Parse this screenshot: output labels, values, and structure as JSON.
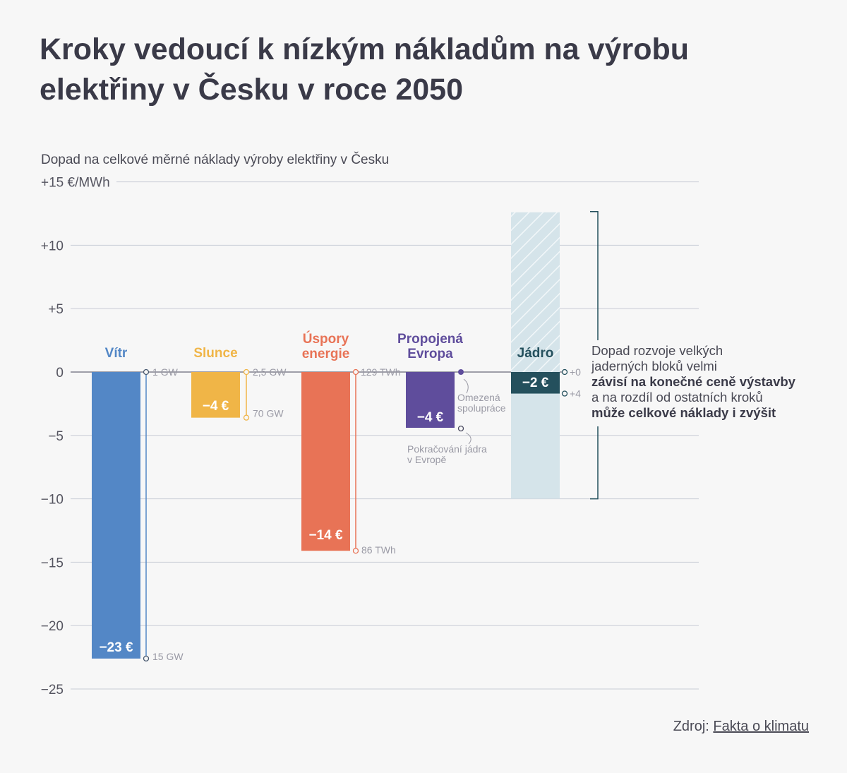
{
  "title": "Kroky vedoucí k nízkým nákladům na výrobu elektřiny v Česku v roce 2050",
  "subtitle": "Dopad na celkové měrné náklady výroby elektřiny v Česku",
  "source": {
    "prefix": "Zdroj: ",
    "link_text": "Fakta o klimatu"
  },
  "annotation": {
    "line1": "Dopad rozvoje velkých",
    "line2": "jaderných bloků velmi",
    "line3_bold": "závisí na konečné ceně výstavby",
    "line4": "a na rozdíl od ostatních kroků",
    "line5_bold": "může celkové náklady i zvýšit"
  },
  "colors": {
    "vitr": "#5387c6",
    "slunce": "#f0b547",
    "uspory": "#e87356",
    "propojena": "#5f4d9c",
    "jadro_dark": "#24505d",
    "jadro_light": "#d5e4ea",
    "grid": "#c9ccd6",
    "axis_text": "#555560",
    "minor_text": "#9a9aa5"
  },
  "chart_data": {
    "type": "bar",
    "ylabel": "",
    "y_unit": "€/MWh",
    "ylim": [
      -25,
      15
    ],
    "y_ticks": [
      {
        "value": 15,
        "label": "+15 €/MWh"
      },
      {
        "value": 10,
        "label": "+10"
      },
      {
        "value": 5,
        "label": "+5"
      },
      {
        "value": 0,
        "label": "0"
      },
      {
        "value": -5,
        "label": "−5"
      },
      {
        "value": -10,
        "label": "−10"
      },
      {
        "value": -15,
        "label": "−15"
      },
      {
        "value": -20,
        "label": "−20"
      },
      {
        "value": -25,
        "label": "−25"
      }
    ],
    "categories": [
      "Vítr",
      "Slunce",
      "Úspory energie",
      "Propojená Evropa",
      "Jádro"
    ],
    "category_lines": [
      [
        "Vítr"
      ],
      [
        "Slunce"
      ],
      [
        "Úspory",
        "energie"
      ],
      [
        "Propojená",
        "Evropa"
      ],
      [
        "Jádro"
      ]
    ],
    "values": [
      -22.6,
      -3.6,
      -14.1,
      -4.4,
      -1.7
    ],
    "value_labels": [
      "−23 €",
      "−4 €",
      "−14 €",
      "−4 €",
      "−2 €"
    ],
    "range_jadro": [
      -10,
      12.6
    ],
    "markers": [
      {
        "top": 0,
        "bottom": -22.6,
        "top_label": "1 GW",
        "bottom_label": "15 GW"
      },
      {
        "top": 0,
        "bottom": -3.6,
        "top_label": "2,5 GW",
        "bottom_label": "70 GW"
      },
      {
        "top": 0,
        "bottom": -14.1,
        "top_label": "129 TWh",
        "bottom_label": "86 TWh"
      },
      {
        "top": 0,
        "bottom": -4.4,
        "top_label": "Omezená spolupráce",
        "bottom_label": "Pokračování jádra v Evropě"
      },
      {
        "top": 0,
        "bottom": -1.7,
        "top_label": "+0",
        "bottom_label": "+4"
      }
    ]
  }
}
